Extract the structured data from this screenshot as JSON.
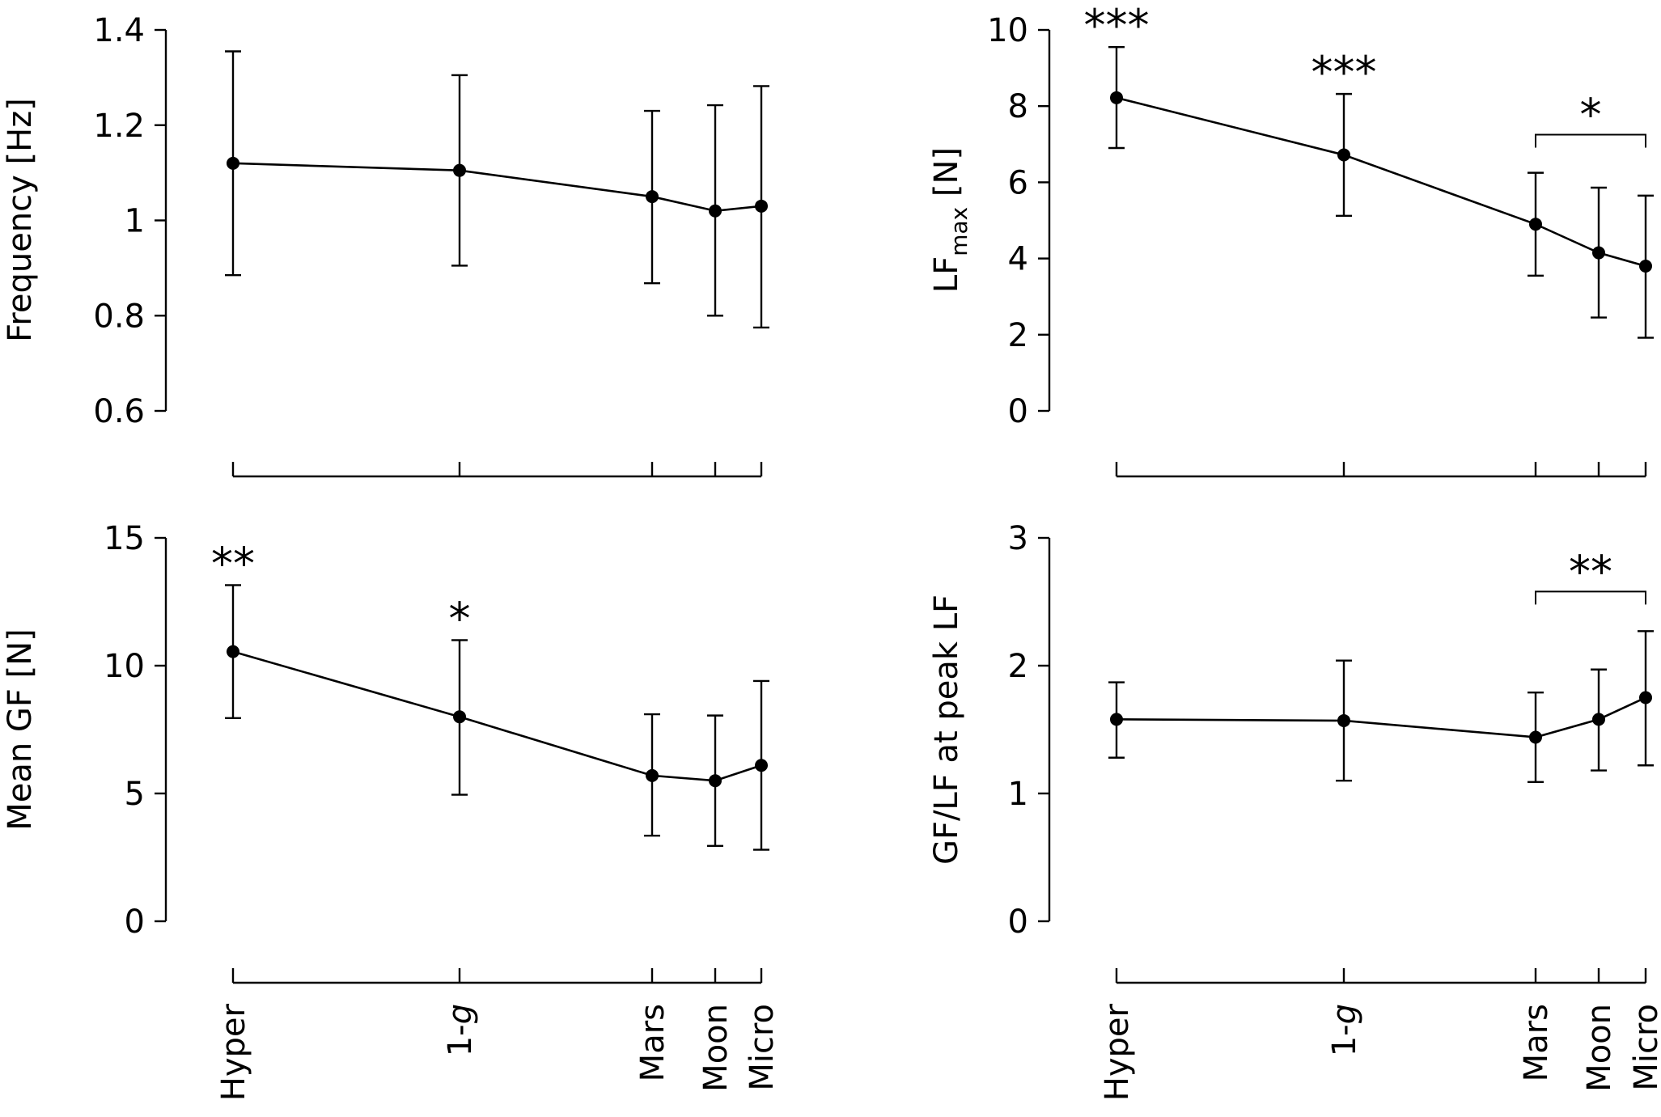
{
  "categories": [
    {
      "label": "Hyper",
      "value": 1.8
    },
    {
      "label": "1-",
      "italic": "g",
      "value": 1.0
    },
    {
      "label": "Mars",
      "value": 0.38
    },
    {
      "label": "Moon",
      "value": 0.16
    },
    {
      "label": "Micro",
      "value": 0.0
    }
  ],
  "chart_data": [
    {
      "id": "frequency",
      "type": "line",
      "ylabel": "Frequency [Hz]",
      "ylim": [
        0.6,
        1.4
      ],
      "yticks": [
        0.6,
        0.8,
        1,
        1.2,
        1.4
      ],
      "ytick_labels": [
        "0.6",
        "0.8",
        "1",
        "1.2",
        "1.4"
      ],
      "values": [
        1.12,
        1.105,
        1.05,
        1.02,
        1.03
      ],
      "err_low": [
        0.885,
        0.905,
        0.868,
        0.8,
        0.775
      ],
      "err_high": [
        1.355,
        1.305,
        1.23,
        1.242,
        1.282
      ],
      "annotations": [],
      "brackets": []
    },
    {
      "id": "lfmax",
      "type": "line",
      "ylabel": "LF",
      "ylabel_sub": "max",
      "ylabel_suffix": " [N]",
      "ylim": [
        0,
        10
      ],
      "yticks": [
        0,
        2,
        4,
        6,
        8,
        10
      ],
      "ytick_labels": [
        "0",
        "2",
        "4",
        "6",
        "8",
        "10"
      ],
      "values": [
        8.22,
        6.72,
        4.9,
        4.15,
        3.8
      ],
      "err_low": [
        6.9,
        5.12,
        3.55,
        2.45,
        1.92
      ],
      "err_high": [
        9.55,
        8.32,
        6.25,
        5.86,
        5.65
      ],
      "annotations": [
        {
          "index": 0,
          "text": "***"
        },
        {
          "index": 1,
          "text": "***"
        }
      ],
      "brackets": [
        {
          "from": 2,
          "to": 4,
          "level": 7.25,
          "text": "*"
        }
      ]
    },
    {
      "id": "meangf",
      "type": "line",
      "ylabel": "Mean GF [N]",
      "ylim": [
        0,
        15
      ],
      "yticks": [
        0,
        5,
        10,
        15
      ],
      "ytick_labels": [
        "0",
        "5",
        "10",
        "15"
      ],
      "values": [
        10.55,
        8.0,
        5.7,
        5.5,
        6.1
      ],
      "err_low": [
        7.95,
        4.95,
        3.35,
        2.95,
        2.8
      ],
      "err_high": [
        13.15,
        11.0,
        8.1,
        8.05,
        9.4
      ],
      "annotations": [
        {
          "index": 0,
          "text": "**"
        },
        {
          "index": 1,
          "text": "*"
        }
      ],
      "brackets": []
    },
    {
      "id": "gflf",
      "type": "line",
      "ylabel": "GF/LF at peak LF",
      "ylim": [
        0,
        3
      ],
      "yticks": [
        0,
        1,
        2,
        3
      ],
      "ytick_labels": [
        "0",
        "1",
        "2",
        "3"
      ],
      "values": [
        1.58,
        1.57,
        1.44,
        1.58,
        1.75
      ],
      "err_low": [
        1.28,
        1.1,
        1.09,
        1.18,
        1.22
      ],
      "err_high": [
        1.87,
        2.04,
        1.79,
        1.97,
        2.27
      ],
      "annotations": [],
      "brackets": [
        {
          "from": 2,
          "to": 4,
          "level": 2.58,
          "text": "**"
        }
      ]
    }
  ]
}
